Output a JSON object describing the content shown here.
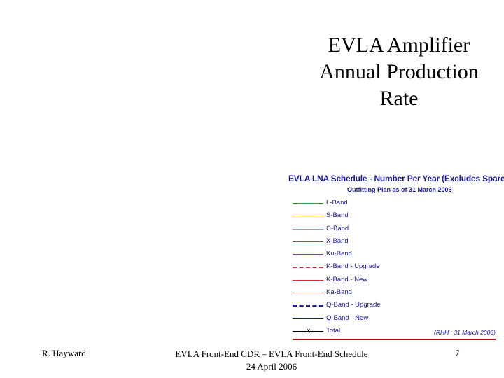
{
  "slide": {
    "title_lines": [
      "EVLA Amplifier",
      "Annual Production",
      "Rate"
    ]
  },
  "chart": {
    "title": "EVLA LNA Schedule - Number Per Year (Excludes Spares)",
    "subtitle": "Outfitting Plan as of 31 March 2006",
    "credit": "(RHH : 31 March 2006)",
    "legend": [
      {
        "label": "L-Band",
        "color": "#2ea02e",
        "style": "solid"
      },
      {
        "label": "S-Band",
        "color": "#f0a020",
        "style": "solid"
      },
      {
        "label": "C-Band",
        "color": "#20d8e0",
        "style": "solid"
      },
      {
        "label": "X-Band",
        "color": "#1a9a3a",
        "style": "solid"
      },
      {
        "label": "Ku-Band",
        "color": "#9a40b0",
        "style": "solid"
      },
      {
        "label": "K-Band - Upgrade",
        "color": "#c04040",
        "style": "dashed"
      },
      {
        "label": "K-Band - New",
        "color": "#e02a2a",
        "style": "solid"
      },
      {
        "label": "Ka-Band",
        "color": "#b07050",
        "style": "solid"
      },
      {
        "label": "Q-Band - Upgrade",
        "color": "#1a1aa0",
        "style": "dashed"
      },
      {
        "label": "Q-Band - New",
        "color": "#1a1aa0",
        "style": "solid"
      },
      {
        "label": "Total",
        "color": "#000000",
        "style": "solid",
        "marker": "x"
      }
    ]
  },
  "footer": {
    "author": "R. Hayward",
    "center_line1": "EVLA Front-End CDR – EVLA Front-End Schedule",
    "center_line2": "24 April 2006",
    "page_number": "7"
  }
}
